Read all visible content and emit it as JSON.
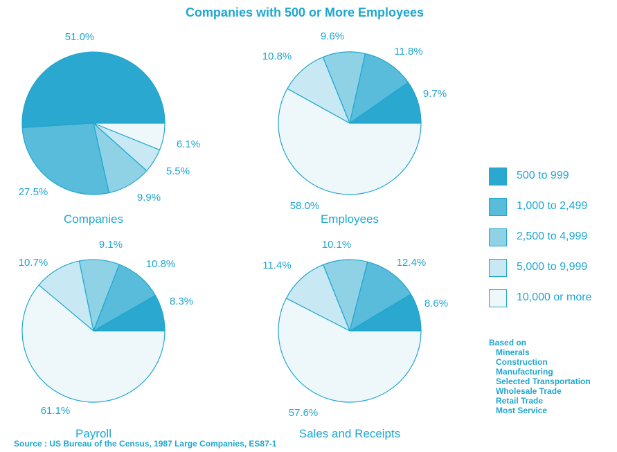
{
  "title": "",
  "subtitle": "Companies with 500 or More Employees",
  "colors": {
    "accent": "#1ea6cf",
    "slice_fills": [
      "#2aa8cf",
      "#59bcdb",
      "#8fd2e6",
      "#c8e9f3",
      "#eef8fb"
    ]
  },
  "chart_data": [
    {
      "type": "pie",
      "label": "Companies",
      "categories": [
        "500 to 999",
        "1,000 to 2,499",
        "2,500 to 4,999",
        "5,000 to 9,999",
        "10,000 or more"
      ],
      "values": [
        51.0,
        27.5,
        9.9,
        5.5,
        6.1
      ],
      "value_labels": [
        "51.0%",
        "27.5%",
        "9.9%",
        "5.5%",
        "6.1%"
      ]
    },
    {
      "type": "pie",
      "label": "Employees",
      "categories": [
        "500 to 999",
        "1,000 to 2,499",
        "2,500 to 4,999",
        "5,000 to 9,999",
        "10,000 or more"
      ],
      "values": [
        9.7,
        11.8,
        9.6,
        10.8,
        58.0
      ],
      "value_labels": [
        "9.7%",
        "11.8%",
        "9.6%",
        "10.8%",
        "58.0%"
      ]
    },
    {
      "type": "pie",
      "label": "Payroll",
      "categories": [
        "500 to 999",
        "1,000 to 2,499",
        "2,500 to 4,999",
        "5,000 to 9,999",
        "10,000 or more"
      ],
      "values": [
        8.3,
        10.8,
        9.1,
        10.7,
        61.1
      ],
      "value_labels": [
        "8.3%",
        "10.8%",
        "9.1%",
        "10.7%",
        "61.1%"
      ]
    },
    {
      "type": "pie",
      "label": "Sales and Receipts",
      "categories": [
        "500 to 999",
        "1,000 to 2,499",
        "2,500 to 4,999",
        "5,000 to 9,999",
        "10,000 or more"
      ],
      "values": [
        8.6,
        12.4,
        10.1,
        11.4,
        57.6
      ],
      "value_labels": [
        "8.6%",
        "12.4%",
        "10.1%",
        "11.4%",
        "57.6%"
      ]
    }
  ],
  "legend": {
    "items": [
      "500 to 999",
      "1,000 to 2,499",
      "2,500 to 4,999",
      "5,000 to 9,999",
      "10,000 or more"
    ]
  },
  "basis": {
    "heading": "Based on",
    "items": [
      "Minerals",
      "Construction",
      "Manufacturing",
      "Selected Transportation",
      "Wholesale Trade",
      "Retail Trade",
      "Most Service"
    ]
  },
  "source": "Source : US Bureau of the Census, 1987 Large Companies, ES87-1"
}
